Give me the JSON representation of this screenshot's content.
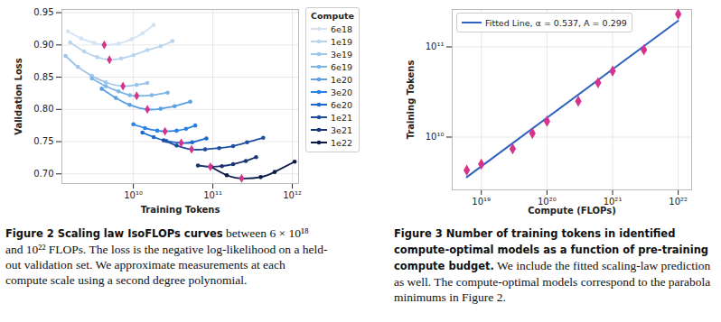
{
  "chart_data": [
    {
      "type": "line",
      "x_label": "Training Tokens",
      "y_label": "Validation Loss",
      "log": "x",
      "xlim": [
        1260000000.0,
        1200000000000.0
      ],
      "ylim": [
        0.685,
        0.955
      ],
      "xticks": [
        {
          "value": 10000000000.0,
          "label": "10¹⁰"
        },
        {
          "value": 100000000000.0,
          "label": "10¹¹"
        },
        {
          "value": 1000000000000.0,
          "label": "10¹²"
        }
      ],
      "yticks": [
        {
          "value": 0.7,
          "label": "0.70"
        },
        0.75,
        {
          "value": 0.8,
          "label": "0.80"
        },
        0.85,
        {
          "value": 0.9,
          "label": "0.90"
        },
        0.95
      ],
      "grid": true,
      "legend": "right",
      "legend_title": "Compute",
      "marker": "circle",
      "series": [
        {
          "name": "6e18",
          "color": "#d2e3f3",
          "x": [
            1500000000.0,
            2200000000.0,
            3200000000.0,
            4300000000.0,
            6500000000.0,
            9500000000.0,
            13000000000.0,
            18000000000.0
          ],
          "values": [
            0.921,
            0.91,
            0.903,
            0.9,
            0.902,
            0.909,
            0.918,
            0.931
          ],
          "minimum": {
            "x": 4300000000.0,
            "value": 0.9,
            "marker": "diamond",
            "color": "#d6338c"
          }
        },
        {
          "name": "1e19",
          "color": "#b9d5ee",
          "x": [
            1600000000.0,
            2400000000.0,
            3500000000.0,
            5000000000.0,
            7000000000.0,
            10000000000.0,
            15000000000.0,
            22000000000.0,
            31000000000.0
          ],
          "values": [
            0.904,
            0.89,
            0.881,
            0.877,
            0.879,
            0.884,
            0.892,
            0.898,
            0.906
          ],
          "minimum": {
            "x": 5000000000.0,
            "value": 0.877,
            "marker": "diamond",
            "color": "#d6338c"
          }
        },
        {
          "name": "3e19",
          "color": "#9cc6ea",
          "x": [
            1400000000.0,
            2000000000.0,
            3000000000.0,
            4500000000.0,
            7400000000.0,
            11000000000.0,
            15000000000.0
          ],
          "values": [
            0.883,
            0.866,
            0.852,
            0.842,
            0.836,
            0.838,
            0.841
          ],
          "minimum": {
            "x": 7400000000.0,
            "value": 0.836,
            "marker": "diamond",
            "color": "#d6338c"
          }
        },
        {
          "name": "6e19",
          "color": "#7db5e6",
          "x": [
            3000000000.0,
            4500000000.0,
            6500000000.0,
            9000000000.0,
            11000000000.0,
            17000000000.0,
            27000000000.0
          ],
          "values": [
            0.848,
            0.836,
            0.828,
            0.822,
            0.821,
            0.822,
            0.826
          ],
          "minimum": {
            "x": 11000000000.0,
            "value": 0.821,
            "marker": "diamond",
            "color": "#d6338c"
          }
        },
        {
          "name": "1e20",
          "color": "#5aa0e2",
          "x": [
            4000000000.0,
            6000000000.0,
            9000000000.0,
            15000000000.0,
            22000000000.0,
            33000000000.0,
            52000000000.0
          ],
          "values": [
            0.832,
            0.818,
            0.807,
            0.8,
            0.801,
            0.805,
            0.812
          ],
          "minimum": {
            "x": 15000000000.0,
            "value": 0.8,
            "marker": "diamond",
            "color": "#d6338c"
          }
        },
        {
          "name": "3e20",
          "color": "#2a82e4",
          "x": [
            10000000000.0,
            14000000000.0,
            20000000000.0,
            25000000000.0,
            35000000000.0,
            46000000000.0,
            60000000000.0
          ],
          "values": [
            0.777,
            0.771,
            0.767,
            0.766,
            0.767,
            0.77,
            0.775
          ],
          "minimum": {
            "x": 25000000000.0,
            "value": 0.766,
            "marker": "diamond",
            "color": "#d6338c"
          }
        },
        {
          "name": "6e20",
          "color": "#1c68cc",
          "x": [
            13000000000.0,
            18000000000.0,
            26000000000.0,
            40000000000.0,
            55000000000.0,
            83000000000.0
          ],
          "values": [
            0.764,
            0.757,
            0.751,
            0.748,
            0.749,
            0.755
          ],
          "minimum": {
            "x": 40000000000.0,
            "value": 0.748,
            "marker": "diamond",
            "color": "#d6338c"
          }
        },
        {
          "name": "1e21",
          "color": "#1f4e9e",
          "x": [
            24000000000.0,
            35000000000.0,
            54000000000.0,
            80000000000.0,
            120000000000.0,
            180000000000.0,
            270000000000.0,
            430000000000.0
          ],
          "values": [
            0.752,
            0.744,
            0.738,
            0.738,
            0.74,
            0.743,
            0.749,
            0.756
          ],
          "minimum": {
            "x": 54000000000.0,
            "value": 0.738,
            "marker": "diamond",
            "color": "#d6338c"
          }
        },
        {
          "name": "3e21",
          "color": "#1a3372",
          "x": [
            65000000000.0,
            93000000000.0,
            130000000000.0,
            180000000000.0,
            260000000000.0,
            350000000000.0
          ],
          "values": [
            0.713,
            0.711,
            0.712,
            0.715,
            0.72,
            0.726
          ],
          "minimum": {
            "x": 93000000000.0,
            "value": 0.711,
            "marker": "diamond",
            "color": "#d6338c"
          }
        },
        {
          "name": "1e22",
          "color": "#0d1b4a",
          "x": [
            95000000000.0,
            150000000000.0,
            230000000000.0,
            400000000000.0,
            600000000000.0,
            1070000000000.0
          ],
          "values": [
            0.711,
            0.698,
            0.693,
            0.695,
            0.703,
            0.719
          ],
          "minimum": {
            "x": 230000000000.0,
            "value": 0.693,
            "marker": "diamond",
            "color": "#d6338c"
          }
        }
      ],
      "caption": {
        "title": "Figure 2 Scaling law IsoFLOPs curves",
        "text": "between 6 × 10¹⁸ and 10²² FLOPs. The loss is the negative log-likelihood on a held-out validation set. We approximate measurements at each compute scale using a second degree polynomial."
      }
    },
    {
      "type": "scatter",
      "x_label": "Compute (FLOPs)",
      "y_label": "Training Tokens",
      "log": true,
      "xlim": [
        3.6e+18,
        1.6e+22
      ],
      "ylim": [
        2600000000.0,
        260000000000.0
      ],
      "xticks": [
        {
          "value": 1e+19,
          "label": "10¹⁹"
        },
        {
          "value": 1e+20,
          "label": "10²⁰"
        },
        {
          "value": 1e+21,
          "label": "10²¹"
        },
        {
          "value": 1e+22,
          "label": "10²²"
        }
      ],
      "yticks": [
        {
          "value": 10000000000.0,
          "label": "10¹⁰"
        },
        {
          "value": 100000000000.0,
          "label": "10¹¹"
        }
      ],
      "grid": true,
      "legend": "upper left",
      "series": [
        {
          "name": "Fitted Line, α = 0.537, A = 0.299",
          "type": "line",
          "color": "#2f62c0",
          "x": [
            6e+18,
            1e+22
          ],
          "values": [
            3600000000.0,
            195000000000.0
          ]
        },
        {
          "type": "scatter",
          "marker": "diamond",
          "color": "#d6338c",
          "x": [
            6e+18,
            1e+19,
            3e+19,
            6e+19,
            1e+20,
            3e+20,
            6e+20,
            1e+21,
            3e+21,
            1e+22
          ],
          "values": [
            4300000000.0,
            5000000000.0,
            7400000000.0,
            11000000000.0,
            15000000000.0,
            25000000000.0,
            40000000000.0,
            54000000000.0,
            93000000000.0,
            230000000000.0
          ]
        }
      ],
      "caption": {
        "title": "Figure 3 Number of training tokens in identified compute-optimal models as a function of pre-training compute budget.",
        "text": "We include the fitted scaling-law prediction as well. The compute-optimal models correspond to the parabola minimums in Figure 2."
      }
    }
  ]
}
